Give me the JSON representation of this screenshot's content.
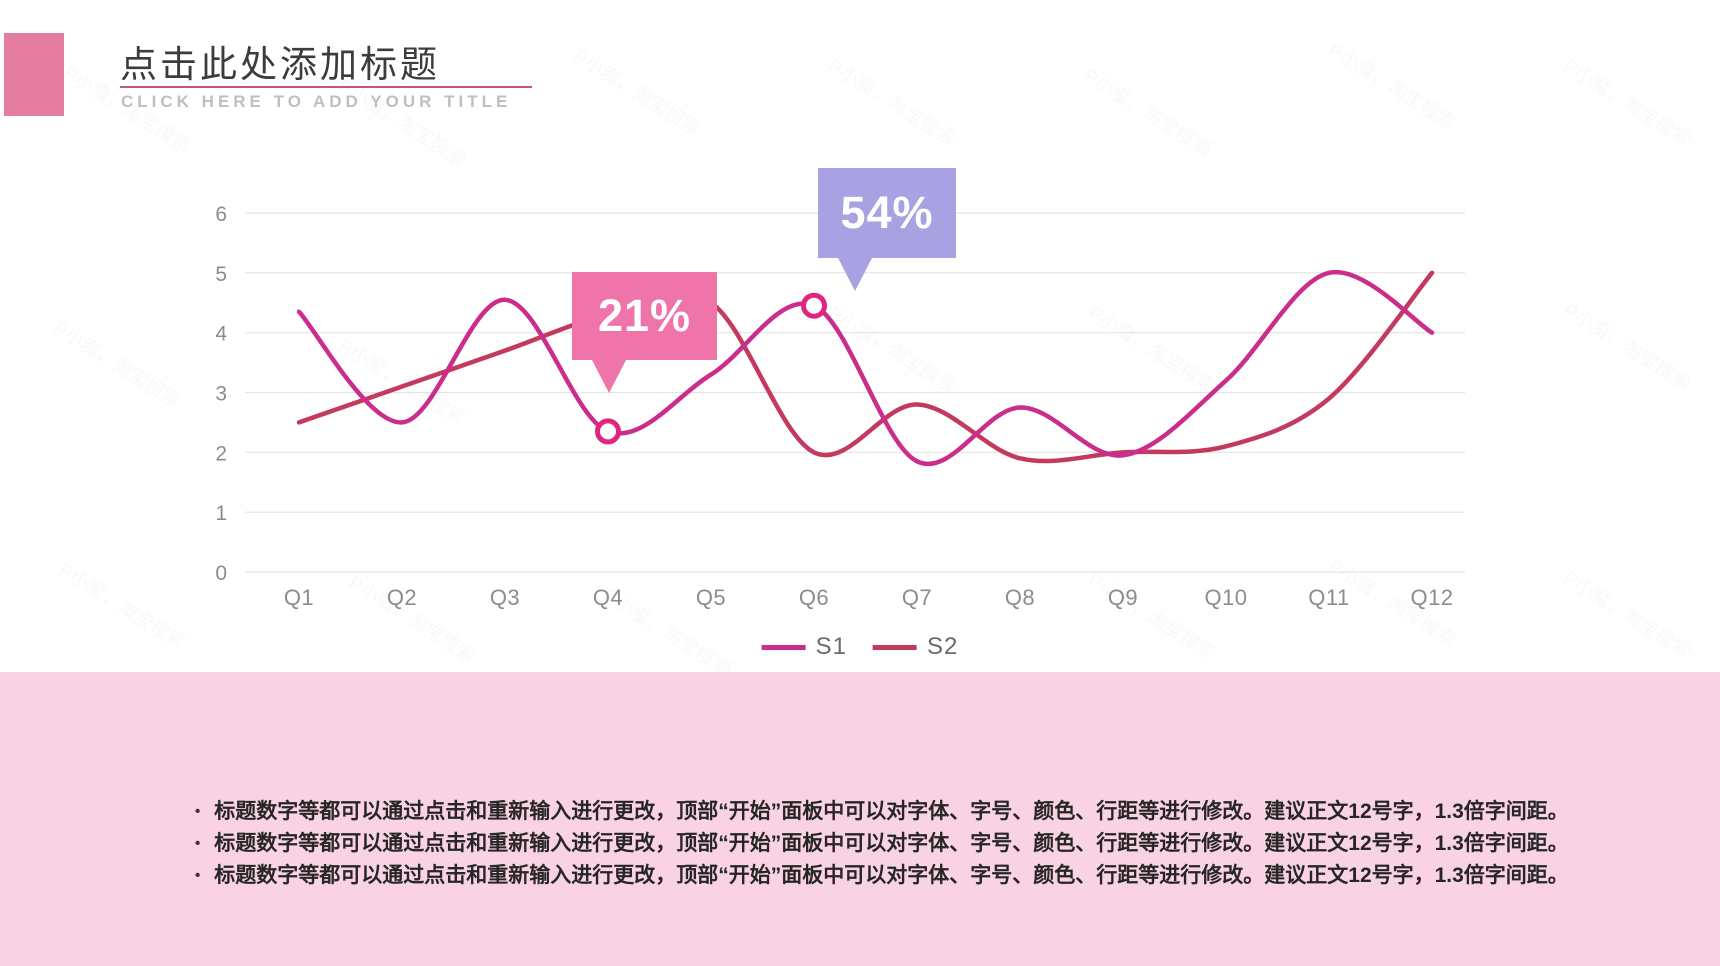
{
  "header": {
    "title": "点击此处添加标题",
    "subtitle": "CLICK HERE TO ADD YOUR TITLE",
    "accent_square_color": "#e57da1",
    "underline_color": "#c2577e"
  },
  "chart_data": {
    "type": "line",
    "categories": [
      "Q1",
      "Q2",
      "Q3",
      "Q4",
      "Q5",
      "Q6",
      "Q7",
      "Q8",
      "Q9",
      "Q10",
      "Q11",
      "Q12"
    ],
    "series": [
      {
        "name": "S1",
        "color": "#cb2d8c",
        "values": [
          4.35,
          2.5,
          4.55,
          2.35,
          3.3,
          4.45,
          1.85,
          2.75,
          1.95,
          3.2,
          5.0,
          4.0
        ],
        "markers": [
          {
            "category": "Q4",
            "value": 2.35
          },
          {
            "category": "Q6",
            "value": 4.45
          }
        ]
      },
      {
        "name": "S2",
        "color": "#c43a5e",
        "values": [
          2.5,
          3.1,
          3.7,
          4.3,
          4.5,
          2.0,
          2.8,
          1.9,
          2.0,
          2.1,
          2.9,
          5.0
        ]
      }
    ],
    "callouts": [
      {
        "label": "21%",
        "series": "S1",
        "category": "Q4",
        "color": "#ee74a9"
      },
      {
        "label": "54%",
        "series": "S1",
        "category": "Q6",
        "color": "#a8a2e3"
      }
    ],
    "title": "",
    "xlabel": "",
    "ylabel": "",
    "ylim": [
      0,
      6
    ],
    "yticks": [
      0,
      1,
      2,
      3,
      4,
      5,
      6
    ],
    "grid": true,
    "gridline_color": "#e4e4e4",
    "axis_text_color": "#8c8c8c",
    "marker_ring_color": "#e0257f",
    "legend_position": "bottom"
  },
  "legend": {
    "items": [
      {
        "label": "S1",
        "color": "#cb2d8c"
      },
      {
        "label": "S2",
        "color": "#c43a5e"
      }
    ]
  },
  "band": {
    "background": "#f9d2e4"
  },
  "bullets": [
    "标题数字等都可以通过点击和重新输入进行更改，顶部“开始”面板中可以对字体、字号、颜色、行距等进行修改。建议正文12号字，1.3倍字间距。",
    "标题数字等都可以通过点击和重新输入进行更改，顶部“开始”面板中可以对字体、字号、颜色、行距等进行修改。建议正文12号字，1.3倍字间距。",
    "标题数字等都可以通过点击和重新输入进行更改，顶部“开始”面板中可以对字体、字号、颜色、行距等进行修改。建议正文12号字，1.3倍字间距。"
  ],
  "watermark": {
    "text": "P小魔，淘宝搜索"
  }
}
